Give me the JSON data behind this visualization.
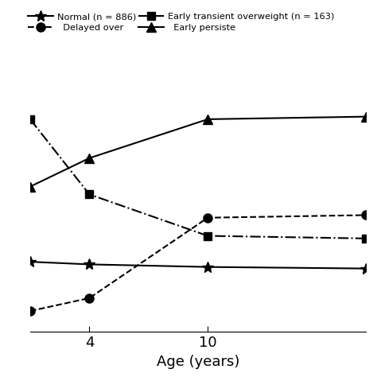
{
  "series": [
    {
      "label": "Normal (n = 886)",
      "x": [
        1,
        4,
        10,
        18
      ],
      "y": [
        0.05,
        0.0,
        -0.05,
        -0.08
      ],
      "linestyle": "-",
      "marker": "*",
      "markersize": 10,
      "linewidth": 1.5
    },
    {
      "label": "Early transient overweight (n = 163)",
      "x": [
        1,
        4,
        10,
        18
      ],
      "y": [
        2.8,
        1.35,
        0.55,
        0.5
      ],
      "linestyle": "-.",
      "marker": "s",
      "markersize": 7,
      "linewidth": 1.5
    },
    {
      "label": "Delayed overweight",
      "x": [
        1,
        4,
        10,
        18
      ],
      "y": [
        -0.9,
        -0.65,
        0.9,
        0.95
      ],
      "linestyle": "--",
      "marker": "o",
      "markersize": 8,
      "linewidth": 1.5
    },
    {
      "label": "Early persistent overweight",
      "x": [
        1,
        4,
        10,
        18
      ],
      "y": [
        1.5,
        2.05,
        2.8,
        2.85
      ],
      "linestyle": "-",
      "marker": "^",
      "markersize": 9,
      "linewidth": 1.5
    }
  ],
  "xlim": [
    1,
    18
  ],
  "ylim": [
    -1.3,
    3.5
  ],
  "xticks": [
    4,
    10
  ],
  "xlabel": "Age (years)",
  "legend_row1": [
    {
      "label": "Normal (n = 886)",
      "linestyle": "-",
      "marker": "*",
      "markersize": 10
    },
    {
      "label": "Delayed over",
      "linestyle": "--",
      "marker": "o",
      "markersize": 8
    }
  ],
  "legend_row2": [
    {
      "label": "Early transient overweight (n = 163)",
      "linestyle": "-.",
      "marker": "s",
      "markersize": 7
    },
    {
      "label": "Early persiste",
      "linestyle": "-",
      "marker": "^",
      "markersize": 9
    }
  ],
  "background_color": "#ffffff",
  "figsize": [
    4.74,
    4.74
  ],
  "dpi": 100
}
